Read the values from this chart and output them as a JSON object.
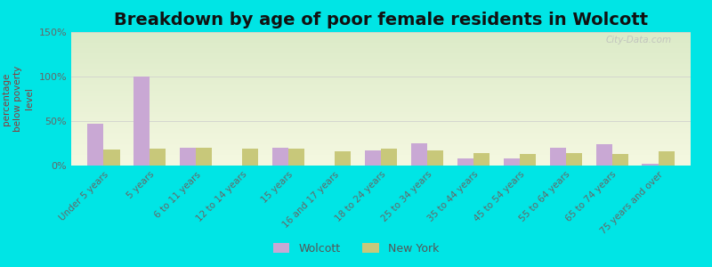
{
  "title": "Breakdown by age of poor female residents in Wolcott",
  "ylabel": "percentage\nbelow poverty\nlevel",
  "categories": [
    "Under 5 years",
    "5 years",
    "6 to 11 years",
    "12 to 14 years",
    "15 years",
    "16 and 17 years",
    "18 to 24 years",
    "25 to 34 years",
    "35 to 44 years",
    "45 to 54 years",
    "55 to 64 years",
    "65 to 74 years",
    "75 years and over"
  ],
  "wolcott_values": [
    47,
    100,
    20,
    0,
    20,
    0,
    17,
    25,
    8,
    8,
    20,
    24,
    2
  ],
  "newyork_values": [
    18,
    19,
    20,
    19,
    19,
    16,
    19,
    17,
    14,
    13,
    14,
    13,
    16
  ],
  "wolcott_color": "#c9a8d4",
  "newyork_color": "#c8c87a",
  "ylim": [
    0,
    150
  ],
  "yticks": [
    0,
    50,
    100,
    150
  ],
  "ytick_labels": [
    "0%",
    "50%",
    "100%",
    "150%"
  ],
  "background_color": "#00e5e5",
  "plot_bg_top": "#e8f0d8",
  "plot_bg_bottom": "#f5f5e8",
  "title_fontsize": 14,
  "legend_entries": [
    "Wolcott",
    "New York"
  ],
  "bar_width": 0.35,
  "watermark": "City-Data.com"
}
